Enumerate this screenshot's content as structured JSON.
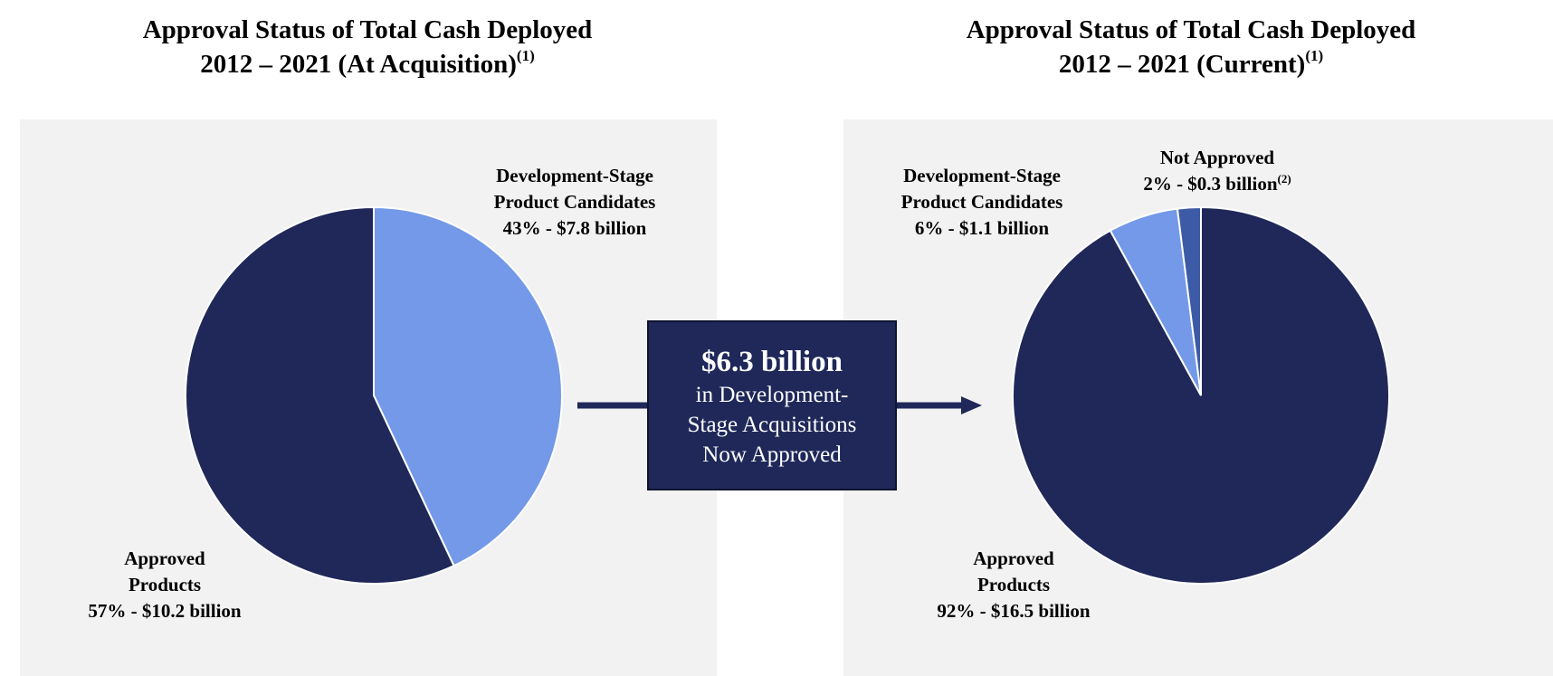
{
  "chart_data": [
    {
      "type": "pie",
      "title_line1": "Approval Status of Total Cash Deployed",
      "title_line2": "2012 – 2021 (At Acquisition)",
      "title_footnote": "(1)",
      "slices": [
        {
          "label_line1": "Development-Stage",
          "label_line2": "Product Candidates",
          "value_text": "43% - $7.8 billion",
          "value": 43,
          "amount": 7.8,
          "color": "#7399e8"
        },
        {
          "label_line1": "Approved",
          "label_line2": "Products",
          "value_text": "57% - $10.2 billion",
          "value": 57,
          "amount": 10.2,
          "color": "#1f2859"
        }
      ]
    },
    {
      "type": "pie",
      "title_line1": "Approval Status of Total Cash Deployed",
      "title_line2": "2012 – 2021 (Current)",
      "title_footnote": "(1)",
      "slices": [
        {
          "label_line1": "Approved",
          "label_line2": "Products",
          "value_text": "92% - $16.5 billion",
          "value": 92,
          "amount": 16.5,
          "color": "#1f2859"
        },
        {
          "label_line1": "Development-Stage",
          "label_line2": "Product Candidates",
          "value_text": "6% - $1.1 billion",
          "value": 6,
          "amount": 1.1,
          "color": "#7399e8"
        },
        {
          "label_line1": "Not Approved",
          "label_line2": "",
          "value_text": "2% - $0.3 billion",
          "value_footnote": "(2)",
          "value": 2,
          "amount": 0.3,
          "color": "#3c5aa6"
        }
      ]
    }
  ],
  "callout": {
    "headline": "$6.3 billion",
    "line1": "in Development-",
    "line2": "Stage Acquisitions",
    "line3": "Now Approved"
  },
  "colors": {
    "navy": "#1f2859",
    "light_blue": "#7399e8",
    "mid_blue": "#3c5aa6",
    "panel": "#f2f2f2"
  }
}
